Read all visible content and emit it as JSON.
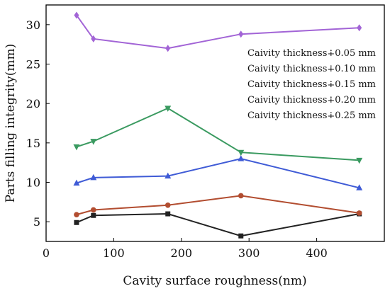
{
  "chart_data": {
    "type": "line",
    "title": "",
    "xlabel": "Cavity surface roughness(nm)",
    "ylabel": "Parts filling integrity(mm)",
    "xlim": [
      0,
      500
    ],
    "ylim": [
      2.5,
      32.5
    ],
    "xticks": [
      0,
      100,
      200,
      300,
      400
    ],
    "yticks": [
      5,
      10,
      15,
      20,
      25,
      30
    ],
    "grid": false,
    "legend_position": "top-right",
    "series": [
      {
        "name": "Caivity thickness∔0.05 mm",
        "color": "#222222",
        "marker": "square",
        "x": [
          45,
          70,
          180,
          288,
          463
        ],
        "y": [
          4.9,
          5.8,
          6.0,
          3.2,
          6.0
        ]
      },
      {
        "name": "Caivity thickness∔0.10 mm",
        "color": "#b24d30",
        "marker": "circle",
        "x": [
          45,
          70,
          180,
          288,
          463
        ],
        "y": [
          5.9,
          6.5,
          7.1,
          8.3,
          6.1
        ]
      },
      {
        "name": "Caivity thickness∔0.15 mm",
        "color": "#3f5bd6",
        "marker": "triangle-up",
        "x": [
          45,
          70,
          180,
          288,
          463
        ],
        "y": [
          9.9,
          10.6,
          10.8,
          13.0,
          9.3
        ]
      },
      {
        "name": "Caivity thickness∔0.20 mm",
        "color": "#3a9a60",
        "marker": "triangle-down",
        "x": [
          45,
          70,
          180,
          288,
          463
        ],
        "y": [
          14.5,
          15.2,
          19.4,
          13.8,
          12.8
        ]
      },
      {
        "name": "Caivity thickness∔0.25 mm",
        "color": "#a264d6",
        "marker": "diamond",
        "x": [
          45,
          70,
          180,
          288,
          463
        ],
        "y": [
          31.2,
          28.2,
          27.0,
          28.8,
          29.6
        ]
      }
    ]
  }
}
